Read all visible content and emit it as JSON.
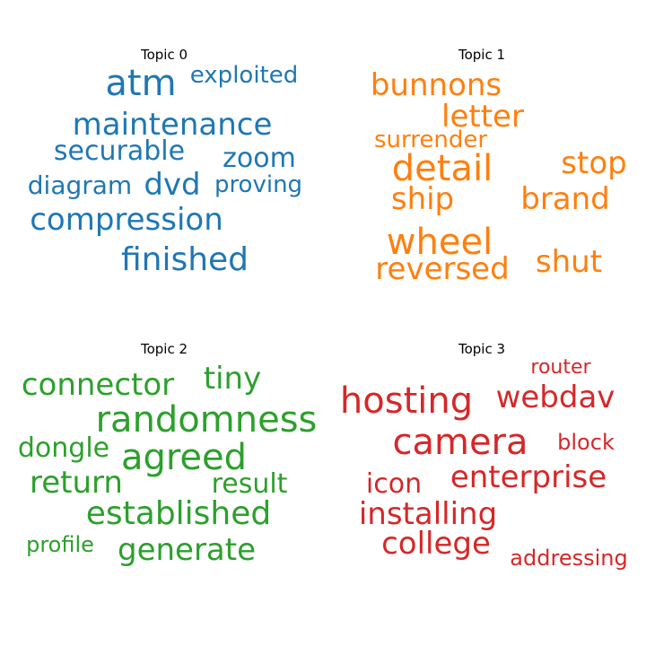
{
  "colors": {
    "topic0": "#1f77b4",
    "topic1": "#ff7f0e",
    "topic2": "#2ca02c",
    "topic3": "#d62728"
  },
  "topics": [
    {
      "title": "Topic 0",
      "words": [
        "atm",
        "exploited",
        "maintenance",
        "securable",
        "zoom",
        "diagram",
        "dvd",
        "proving",
        "compression",
        "finished"
      ]
    },
    {
      "title": "Topic 1",
      "words": [
        "bunnons",
        "letter",
        "surrender",
        "detail",
        "stop",
        "ship",
        "brand",
        "wheel",
        "reversed",
        "shut"
      ]
    },
    {
      "title": "Topic 2",
      "words": [
        "connector",
        "tiny",
        "randomness",
        "dongle",
        "agreed",
        "return",
        "result",
        "established",
        "profile",
        "generate"
      ]
    },
    {
      "title": "Topic 3",
      "words": [
        "router",
        "hosting",
        "webdav",
        "camera",
        "block",
        "icon",
        "enterprise",
        "installing",
        "college",
        "addressing"
      ]
    }
  ]
}
